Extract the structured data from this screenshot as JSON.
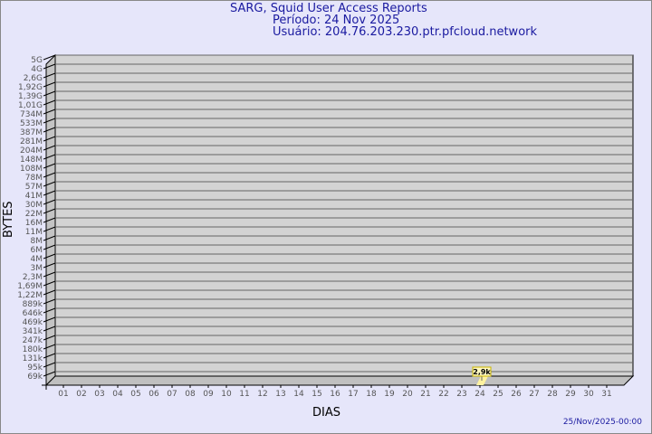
{
  "header": {
    "title": "SARG, Squid User Access Reports",
    "period": "Período: 24 Nov 2025",
    "user": "Usuário: 204.76.203.230.ptr.pfcloud.network"
  },
  "footer": {
    "timestamp": "25/Nov/2025-00:00"
  },
  "colors": {
    "title": "#1a1aa0",
    "plot_back": "#d3d3d3",
    "bar": "#fff2a0",
    "label_border": "#c8b400"
  },
  "chart_data": {
    "type": "bar",
    "title": "SARG, Squid User Access Reports",
    "xlabel": "DIAS",
    "ylabel": "BYTES",
    "y_scale": "log",
    "y_ticks": [
      "5G",
      "4G",
      "2,6G",
      "1,92G",
      "1,39G",
      "1,01G",
      "734M",
      "533M",
      "387M",
      "281M",
      "204M",
      "148M",
      "108M",
      "78M",
      "57M",
      "41M",
      "30M",
      "22M",
      "16M",
      "11M",
      "8M",
      "6M",
      "4M",
      "3M",
      "2,3M",
      "1,69M",
      "1,22M",
      "889k",
      "646k",
      "469k",
      "341k",
      "247k",
      "180k",
      "131k",
      "95k",
      "69k"
    ],
    "categories": [
      "01",
      "02",
      "03",
      "04",
      "05",
      "06",
      "07",
      "08",
      "09",
      "10",
      "11",
      "12",
      "13",
      "14",
      "15",
      "16",
      "17",
      "18",
      "19",
      "20",
      "21",
      "22",
      "23",
      "24",
      "25",
      "26",
      "27",
      "28",
      "29",
      "30",
      "31"
    ],
    "points": [
      {
        "x": "24",
        "value": 2900,
        "label": "2,9k"
      }
    ],
    "grid": true
  }
}
